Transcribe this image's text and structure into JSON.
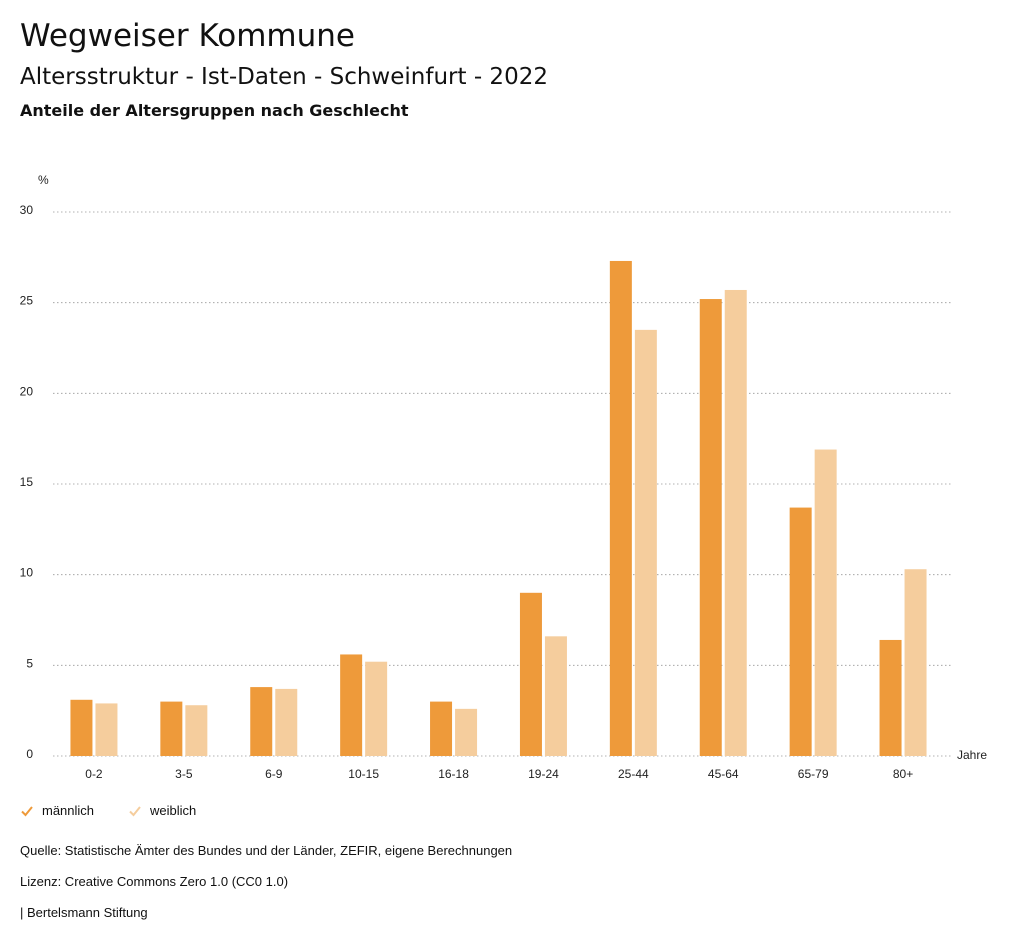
{
  "header": {
    "title": "Wegweiser Kommune",
    "subtitle": "Altersstruktur - Ist-Daten - Schweinfurt - 2022",
    "subsubtitle": "Anteile der Altersgruppen nach Geschlecht"
  },
  "chart_data": {
    "type": "bar",
    "categories": [
      "0-2",
      "3-5",
      "6-9",
      "10-15",
      "16-18",
      "19-24",
      "25-44",
      "45-64",
      "65-79",
      "80+"
    ],
    "series": [
      {
        "name": "männlich",
        "color": "#ee9a3a",
        "values": [
          3.1,
          3.0,
          3.8,
          5.6,
          3.0,
          9.0,
          27.3,
          25.2,
          13.7,
          6.4
        ]
      },
      {
        "name": "weiblich",
        "color": "#f5cd9d",
        "values": [
          2.9,
          2.8,
          3.7,
          5.2,
          2.6,
          6.6,
          23.5,
          25.7,
          16.9,
          10.3
        ]
      }
    ],
    "ylabel": "%",
    "xlabel": "Jahre",
    "ylim": [
      0,
      30
    ],
    "yticks": [
      0,
      5,
      10,
      15,
      20,
      25,
      30
    ],
    "grid": true,
    "legend_position": "bottom-left"
  },
  "footer": {
    "source": "Quelle: Statistische Ämter des Bundes und der Länder, ZEFIR, eigene Berechnungen",
    "license": "Lizenz: Creative Commons Zero 1.0 (CC0 1.0)",
    "publisher": "| Bertelsmann Stiftung"
  }
}
